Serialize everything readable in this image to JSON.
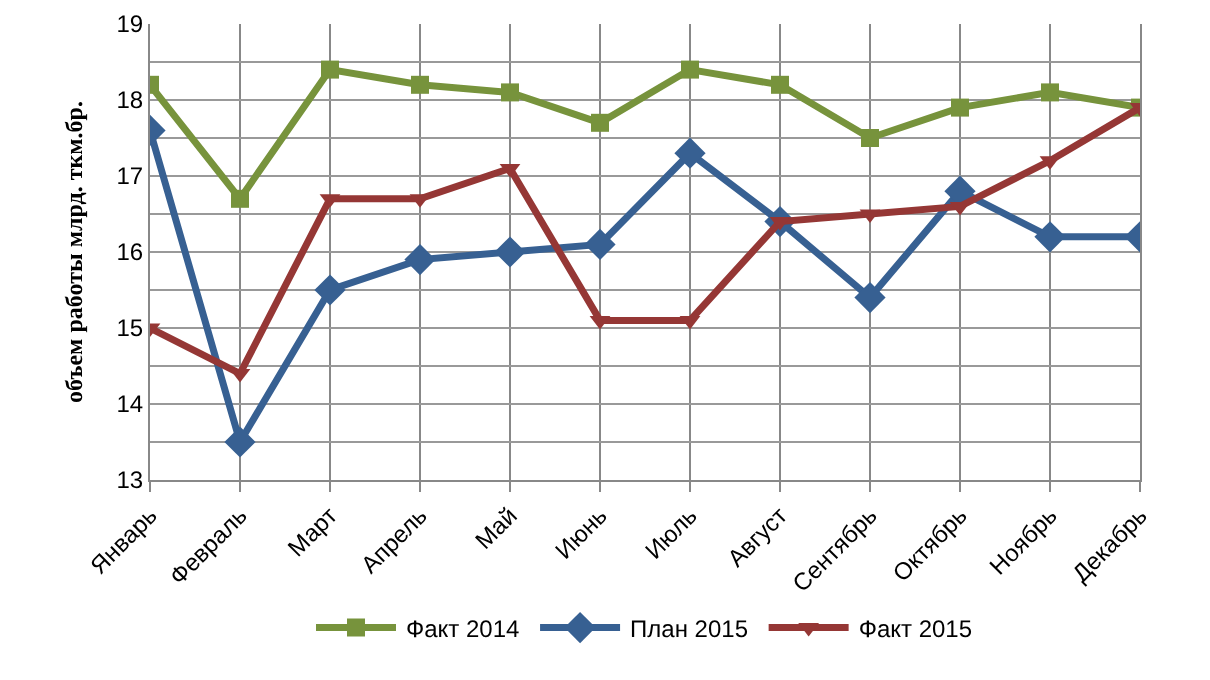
{
  "chart_data": {
    "type": "line",
    "ylabel": "объем работы млрд. ткм.бр.",
    "categories": [
      "Январь",
      "Февраль",
      "Март",
      "Апрель",
      "Май",
      "Июнь",
      "Июль",
      "Август",
      "Сентябрь",
      "Октябрь",
      "Ноябрь",
      "Декабрь"
    ],
    "series": [
      {
        "name": "Факт 2014",
        "color": "#77933c",
        "marker": "square",
        "values": [
          18.2,
          16.7,
          18.4,
          18.2,
          18.1,
          17.7,
          18.4,
          18.2,
          17.5,
          17.9,
          18.1,
          17.9
        ]
      },
      {
        "name": "План 2015",
        "color": "#376092",
        "marker": "diamond",
        "values": [
          17.6,
          13.5,
          15.5,
          15.9,
          16.0,
          16.1,
          17.3,
          16.4,
          15.4,
          16.8,
          16.2,
          16.2
        ]
      },
      {
        "name": "Факт 2015",
        "color": "#953735",
        "marker": "triangle",
        "values": [
          15.0,
          14.4,
          16.7,
          16.7,
          17.1,
          15.1,
          15.1,
          16.4,
          16.5,
          16.6,
          17.2,
          17.9
        ]
      }
    ],
    "ylim": [
      13,
      19
    ],
    "yticks": [
      13,
      {
        "value": 13.5,
        "label": null
      },
      14,
      {
        "value": 14.5,
        "label": null
      },
      15,
      {
        "value": 15.5,
        "label": null
      },
      16,
      {
        "value": 16.5,
        "label": null
      },
      17,
      {
        "value": 17.5,
        "label": null
      },
      18,
      {
        "value": 18.5,
        "label": null
      },
      19
    ],
    "grid": true,
    "legend": "bottom",
    "line_style": "solid"
  }
}
